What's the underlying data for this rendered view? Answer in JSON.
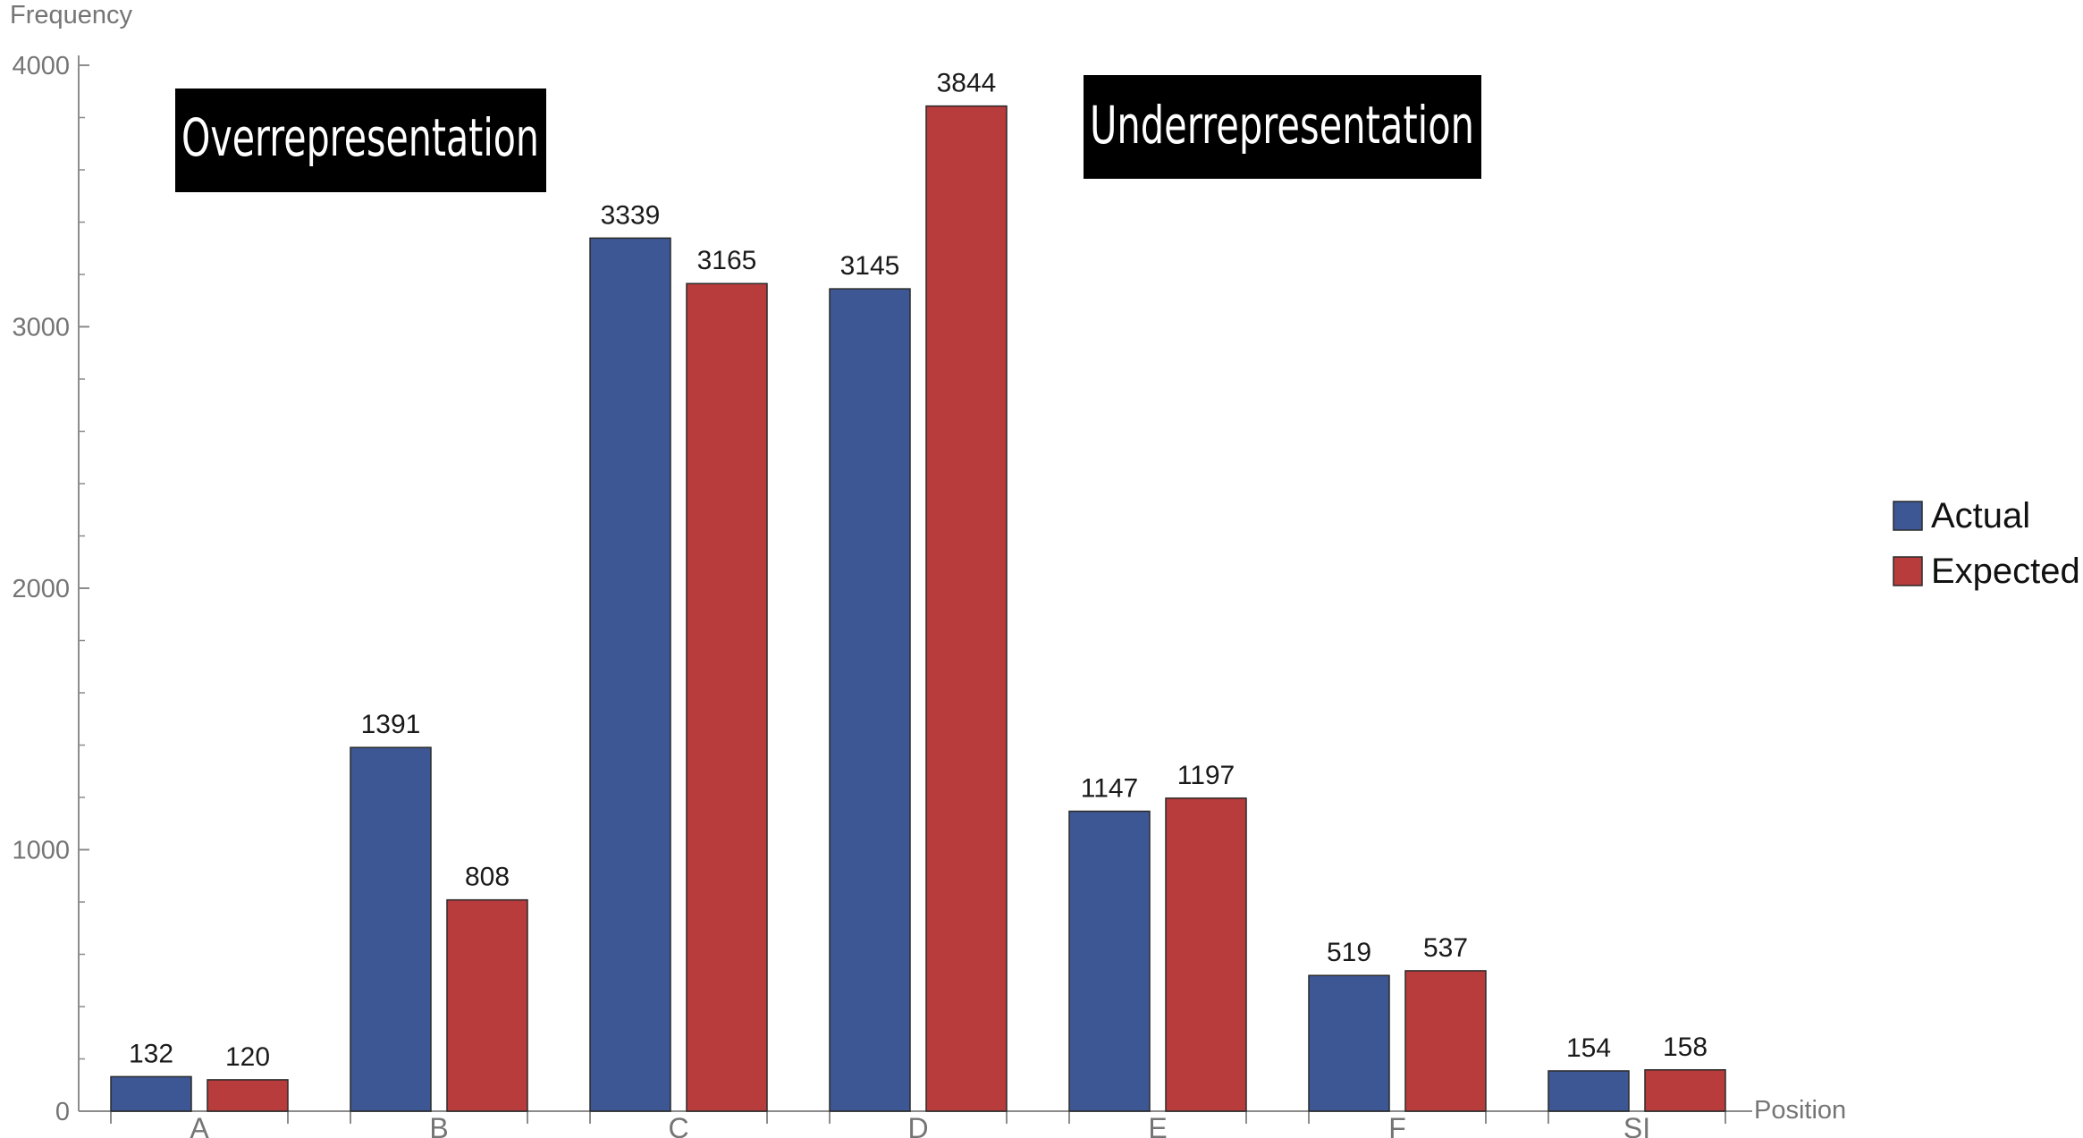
{
  "chart_data": {
    "type": "bar",
    "categories": [
      "A",
      "B",
      "C",
      "D",
      "E",
      "F",
      "SI"
    ],
    "series": [
      {
        "name": "Actual",
        "color": "#3d5794",
        "values": [
          132,
          1391,
          3339,
          3145,
          1147,
          519,
          154
        ]
      },
      {
        "name": "Expected",
        "color": "#b83c3c",
        "values": [
          120,
          808,
          3165,
          3844,
          1197,
          537,
          158
        ]
      }
    ],
    "ylabel": "Frequency",
    "xlabel": "Position",
    "ylim": [
      0,
      4000
    ],
    "yticks": [
      0,
      1000,
      2000,
      3000,
      4000
    ],
    "yticks_display": [
      "0",
      "1000",
      "2000",
      "3000",
      "4000"
    ],
    "grid": false,
    "legend_position": "right",
    "annotations": [
      {
        "text": "Overrepresentation",
        "anchor": "above-B"
      },
      {
        "text": "Underrepresentation",
        "anchor": "above-D"
      }
    ]
  }
}
